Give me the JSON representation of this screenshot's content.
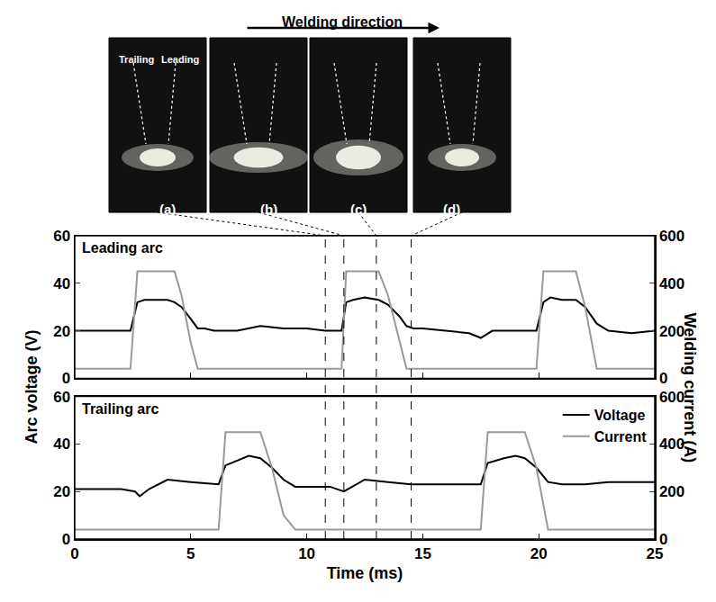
{
  "figure": {
    "arrow_label": "Welding direction",
    "photo_labels": [
      "(a)",
      "(b)",
      "(c)",
      "(d)"
    ],
    "electrode_labels": [
      "Trailing",
      "Leading"
    ],
    "photo_times": [
      10.8,
      11.6,
      13.0,
      14.5
    ],
    "y_label": "Arc voltage (V)",
    "y2_label": "Welding current (A)"
  },
  "chart_data": [
    {
      "type": "line",
      "title": "Leading arc",
      "tick_labels": "y",
      "x": [
        0,
        1,
        2,
        2.4,
        2.7,
        3,
        3.5,
        4,
        4.3,
        4.6,
        5,
        5.3,
        5.6,
        6,
        7,
        8,
        9,
        10,
        10.8,
        11.5,
        11.7,
        12,
        12.5,
        13,
        13.1,
        13.5,
        14,
        14.3,
        14.6,
        15,
        16,
        17,
        17.5,
        18,
        19,
        19.9,
        20.2,
        20.5,
        21,
        21.6,
        22,
        22.5,
        23,
        24,
        25
      ],
      "series": [
        {
          "color": "#000000",
          "values": [
            20,
            20,
            20,
            20,
            32,
            33,
            33,
            33,
            32,
            30,
            25,
            21,
            21,
            20,
            20,
            22,
            21,
            21,
            20,
            20,
            32,
            33,
            34,
            33,
            33,
            31,
            26,
            22,
            21,
            21,
            20,
            19,
            17,
            20,
            20,
            20,
            32,
            34,
            33,
            33,
            30,
            23,
            20,
            19,
            20
          ]
        },
        {
          "color": "#999999",
          "axis": "y2",
          "values": [
            40,
            40,
            40,
            40,
            450,
            450,
            450,
            450,
            450,
            350,
            150,
            40,
            40,
            40,
            40,
            40,
            40,
            40,
            40,
            40,
            450,
            450,
            450,
            450,
            450,
            350,
            150,
            40,
            40,
            40,
            40,
            40,
            40,
            40,
            40,
            40,
            450,
            450,
            450,
            450,
            300,
            40,
            40,
            40,
            40
          ]
        }
      ],
      "xlim": [
        0,
        25
      ],
      "xticks": [
        0,
        5,
        10,
        15,
        20,
        25
      ],
      "ylim": [
        0,
        60
      ],
      "yticks": [
        0,
        20,
        40,
        60
      ],
      "y2lim": [
        0,
        600
      ],
      "y2ticks": [
        0,
        200,
        400,
        600
      ]
    },
    {
      "type": "line",
      "title": "Trailing arc",
      "x_label": "Time (ms)",
      "legend": "upper right",
      "x": [
        0,
        1,
        2,
        2.6,
        2.8,
        3.2,
        4,
        5,
        6,
        6.2,
        6.5,
        7,
        7.5,
        8,
        8.5,
        9,
        9.5,
        10,
        11,
        11.6,
        12.5,
        13.5,
        14.5,
        15.5,
        16.5,
        17.5,
        17.8,
        18.5,
        19,
        19.4,
        19.9,
        20.4,
        21,
        22,
        23,
        24,
        25
      ],
      "series": [
        {
          "name": "Voltage",
          "color": "#000000",
          "values": [
            21,
            21,
            21,
            20,
            18,
            21,
            25,
            24,
            23,
            23,
            31,
            33,
            35,
            34,
            30,
            25,
            22,
            22,
            22,
            20,
            25,
            24,
            23,
            23,
            23,
            23,
            32,
            34,
            35,
            34,
            30,
            24,
            23,
            23,
            24,
            24,
            24
          ]
        },
        {
          "name": "Current",
          "color": "#999999",
          "axis": "y2",
          "values": [
            40,
            40,
            40,
            40,
            40,
            40,
            40,
            40,
            40,
            40,
            450,
            450,
            450,
            450,
            300,
            100,
            40,
            40,
            40,
            40,
            40,
            40,
            40,
            40,
            40,
            40,
            450,
            450,
            450,
            450,
            300,
            40,
            40,
            40,
            40,
            40,
            40
          ]
        }
      ],
      "xlim": [
        0,
        25
      ],
      "xticks": [
        0,
        5,
        10,
        15,
        20,
        25
      ],
      "ylim": [
        0,
        60
      ],
      "yticks": [
        0,
        20,
        40,
        60
      ],
      "y2lim": [
        0,
        600
      ],
      "y2ticks": [
        0,
        200,
        400,
        600
      ]
    }
  ]
}
